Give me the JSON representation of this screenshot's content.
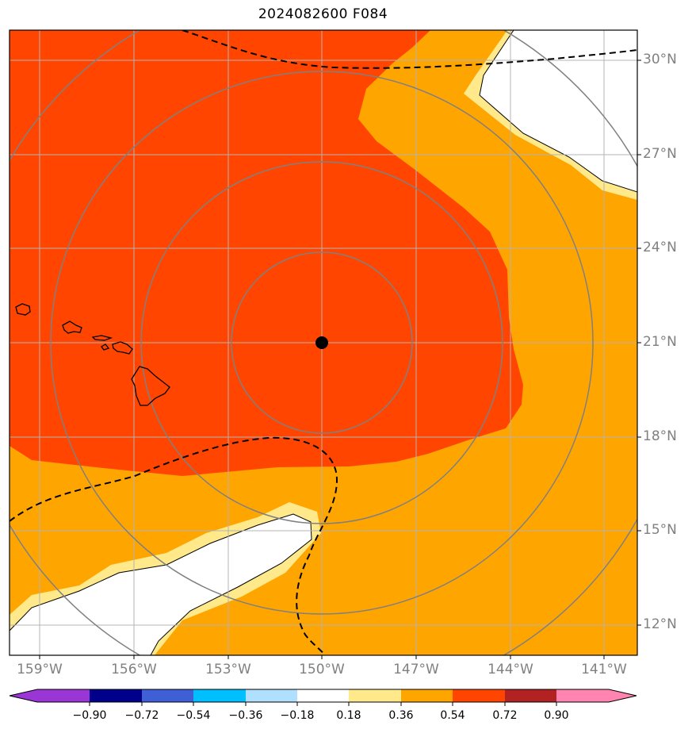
{
  "title": "2024082600 F084",
  "axes": {
    "lon_ticks": [
      "159°W",
      "156°W",
      "153°W",
      "150°W",
      "147°W",
      "144°W",
      "141°W"
    ],
    "lat_ticks": [
      "30°N",
      "27°N",
      "24°N",
      "21°N",
      "18°N",
      "15°N",
      "12°N"
    ]
  },
  "storm_center": {
    "lon": -150.0,
    "lat": 21.0,
    "marker": "black-dot"
  },
  "range_rings": {
    "count": 4,
    "color": "#808080"
  },
  "colorbar": {
    "ticks": [
      "−0.90",
      "−0.72",
      "−0.54",
      "−0.36",
      "−0.18",
      "0.18",
      "0.36",
      "0.54",
      "0.72",
      "0.90"
    ],
    "colors": [
      "#9a35d6",
      "#00008b",
      "#3e5fd6",
      "#00bfff",
      "#b0e0ff",
      "#ffffff",
      "#ffe98a",
      "#ffa500",
      "#ff4500",
      "#b22222",
      "#ff85b0"
    ]
  },
  "fill_colors": {
    "high": "#ff4500",
    "mid": "#ffa500",
    "low": "#ffe98a",
    "none": "#ffffff"
  },
  "contour": {
    "style": "dashed",
    "color": "#000000"
  },
  "gridlines": "on"
}
